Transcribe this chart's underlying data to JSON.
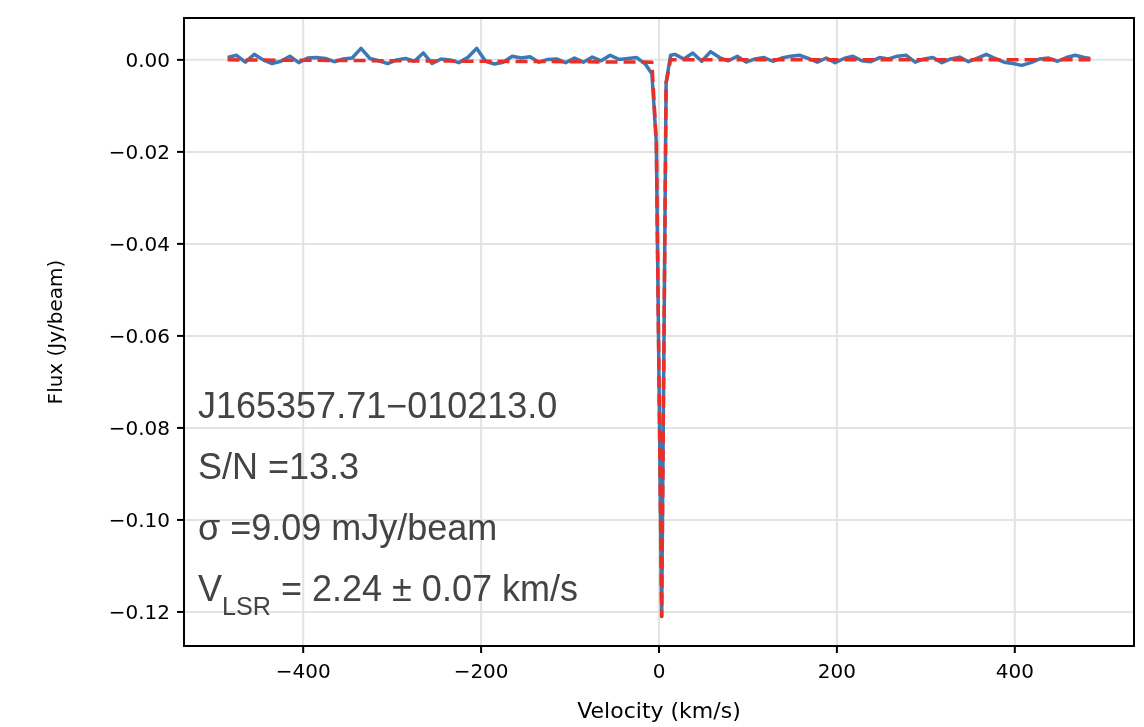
{
  "chart_data": {
    "type": "line",
    "xlabel": "Velocity (km/s)",
    "ylabel": "Flux (Jy/beam)",
    "xlim": [
      -534,
      534
    ],
    "ylim": [
      -0.1274,
      0.0091
    ],
    "xticks": [
      {
        "value": -400,
        "label": "−400"
      },
      {
        "value": -200,
        "label": "−200"
      },
      0,
      200,
      400
    ],
    "yticks": [
      {
        "value": 0,
        "label": "0.00"
      },
      {
        "value": -0.02,
        "label": "−0.02"
      },
      {
        "value": -0.04,
        "label": "−0.04"
      },
      {
        "value": -0.06,
        "label": "−0.06"
      },
      {
        "value": -0.08,
        "label": "−0.08"
      },
      {
        "value": -0.1,
        "label": "−0.10"
      },
      {
        "value": -0.12,
        "label": "−0.12"
      }
    ],
    "grid": true,
    "annotations": [
      "J165357.71−010213.0",
      "S/N =13.3",
      "σ =9.09 mJy/beam",
      "V$_{LSR}$ = 2.24 ± 0.07 km/s"
    ],
    "series": [
      {
        "color": "#3b78b4",
        "line_style": "solid",
        "x": [
          -485,
          -475,
          -465,
          -455,
          -445,
          -435,
          -425,
          -415,
          -405,
          -395,
          -385,
          -375,
          -365,
          -355,
          -345,
          -335,
          -325,
          -315,
          -305,
          -295,
          -285,
          -275,
          -265,
          -255,
          -245,
          -235,
          -225,
          -215,
          -205,
          -195,
          -185,
          -175,
          -165,
          -155,
          -145,
          -135,
          -125,
          -115,
          -105,
          -95,
          -85,
          -75,
          -65,
          -55,
          -45,
          -35,
          -25,
          -15,
          -8,
          -3,
          3,
          8,
          13,
          18,
          28,
          38,
          48,
          58,
          68,
          78,
          88,
          98,
          108,
          118,
          128,
          138,
          148,
          158,
          168,
          178,
          188,
          198,
          208,
          218,
          228,
          238,
          248,
          258,
          268,
          278,
          288,
          298,
          308,
          318,
          328,
          338,
          348,
          358,
          368,
          378,
          388,
          398,
          408,
          418,
          428,
          438,
          448,
          458,
          468,
          478,
          485
        ],
        "values": [
          0.0005,
          0.001,
          -0.0005,
          0.0012,
          0,
          -0.0008,
          -0.0003,
          0.0008,
          -0.0006,
          0.0004,
          0.0005,
          0.0003,
          -0.0004,
          0.0002,
          0.0004,
          0.0025,
          0.0003,
          -0.0002,
          -0.0008,
          0,
          0.0003,
          -0.0003,
          0.0015,
          -0.0008,
          0.0002,
          0,
          -0.0006,
          0.0005,
          0.0025,
          -0.0003,
          -0.0009,
          -0.0005,
          0.0008,
          0.0004,
          0.0007,
          -0.0005,
          0.0001,
          0.0002,
          -0.0006,
          0.0004,
          -0.0005,
          0.0006,
          -0.0002,
          0.001,
          0.0001,
          0.0003,
          0.0005,
          -0.001,
          -0.003,
          -0.018,
          -0.121,
          -0.005,
          0.001,
          0.0012,
          0.0002,
          0.0015,
          -0.0003,
          0.0018,
          0.0005,
          -0.0002,
          0.0008,
          -0.0005,
          0.0002,
          0.0005,
          -0.0003,
          0.0004,
          0.0008,
          0.001,
          0.0003,
          -0.0005,
          0.0004,
          -0.0006,
          0.0003,
          0.0008,
          -0.0002,
          -0.0004,
          0.0005,
          0.0002,
          0.0008,
          0.001,
          -0.0005,
          0.0002,
          0.0005,
          -0.0006,
          0.0002,
          0.0006,
          -0.0004,
          0.0004,
          0.0012,
          0.0003,
          -0.0005,
          -0.0008,
          -0.0012,
          -0.0006,
          0.0002,
          0.0004,
          -0.0003,
          0.0005,
          0.001,
          0.0005,
          0.0003
        ]
      },
      {
        "color": "#e8302a",
        "line_style": "dashed",
        "x": [
          -485,
          -8,
          -3,
          3,
          8,
          13,
          485
        ],
        "values": [
          0,
          -0.0005,
          -0.018,
          -0.121,
          -0.005,
          0,
          0
        ]
      }
    ]
  }
}
